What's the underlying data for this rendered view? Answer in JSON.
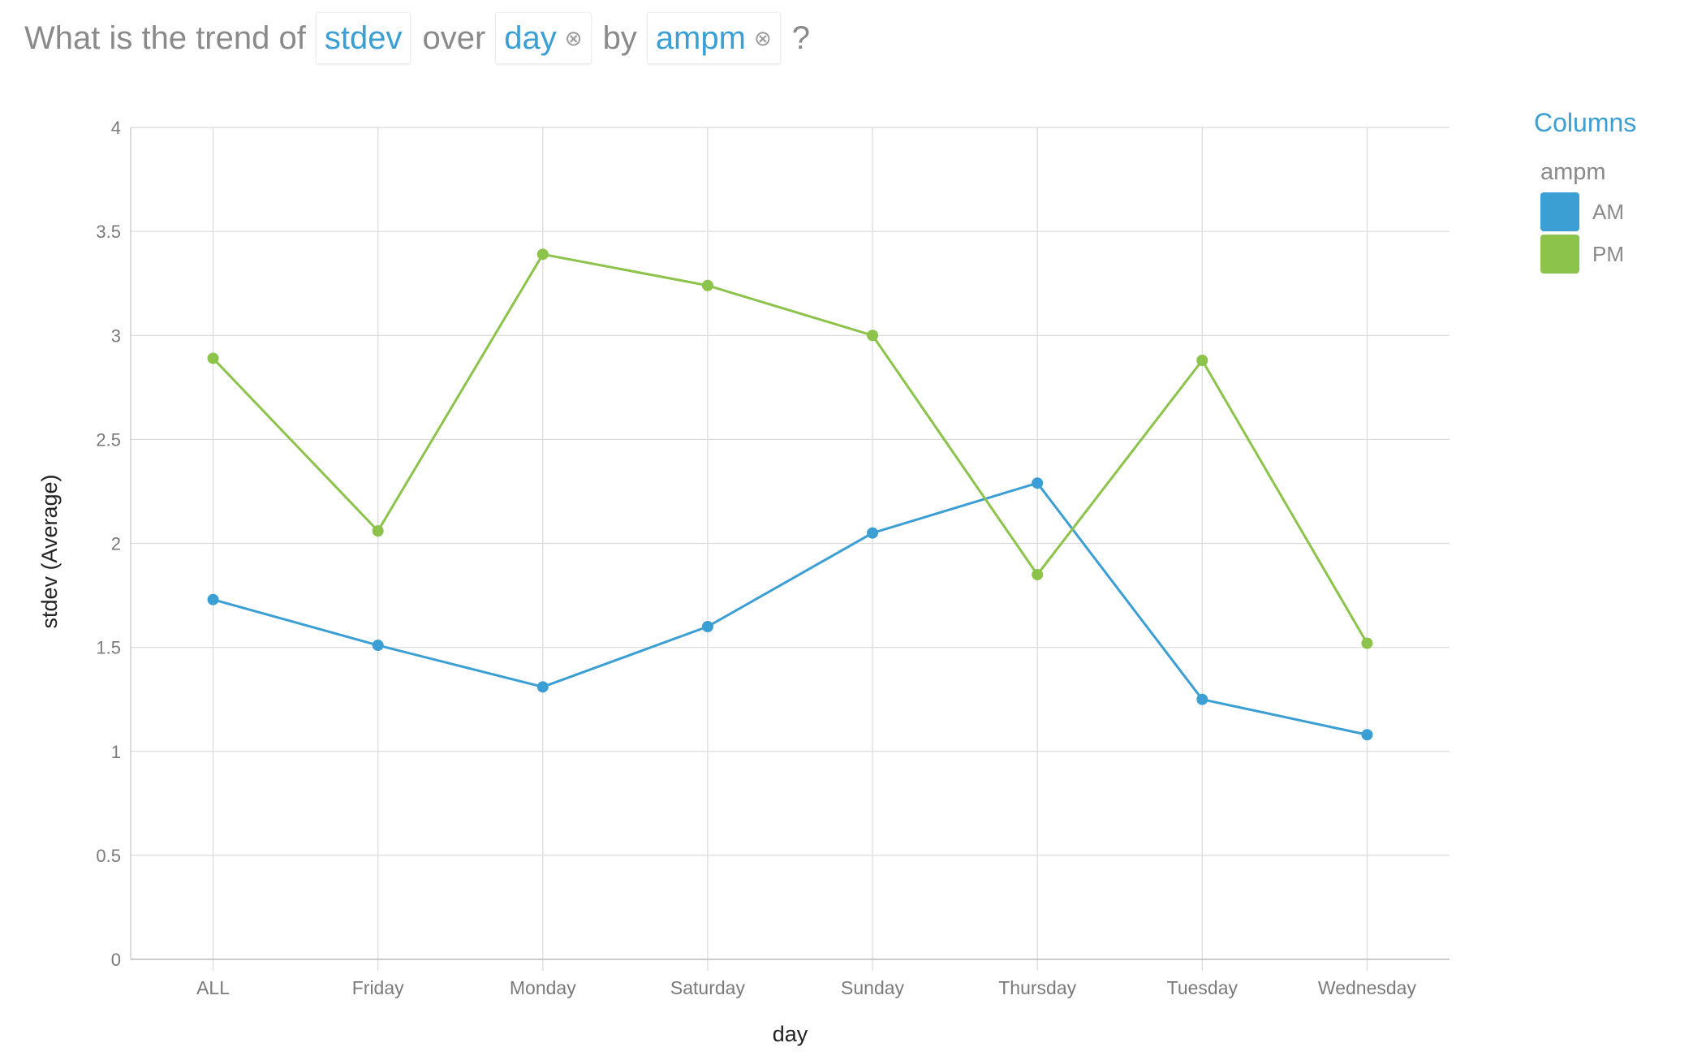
{
  "query": {
    "prefix": "What is the trend of",
    "measure": "stdev",
    "over_word": "over",
    "dimension": "day",
    "by_word": "by",
    "group": "ampm",
    "suffix": "?",
    "remove_glyph": "⊗"
  },
  "legend": {
    "title": "Columns",
    "group_label": "ampm"
  },
  "colors": {
    "AM": "#3c9fd3",
    "PM": "#8cc34a"
  },
  "chart_data": {
    "type": "line",
    "xlabel": "day",
    "ylabel": "stdev (Average)",
    "categories": [
      "ALL",
      "Friday",
      "Monday",
      "Saturday",
      "Sunday",
      "Thursday",
      "Tuesday",
      "Wednesday"
    ],
    "ylim": [
      0,
      4
    ],
    "yticks": [
      "0",
      "0.5",
      "1",
      "1.5",
      "2",
      "2.5",
      "3",
      "3.5",
      "4"
    ],
    "grid": true,
    "legend_position": "right",
    "series": [
      {
        "name": "AM",
        "color": "#3c9fd3",
        "values": [
          1.73,
          1.51,
          1.31,
          1.6,
          2.05,
          2.29,
          1.25,
          1.08
        ]
      },
      {
        "name": "PM",
        "color": "#8cc34a",
        "values": [
          2.89,
          2.06,
          3.39,
          3.24,
          3.0,
          1.85,
          2.88,
          1.52
        ]
      }
    ]
  }
}
